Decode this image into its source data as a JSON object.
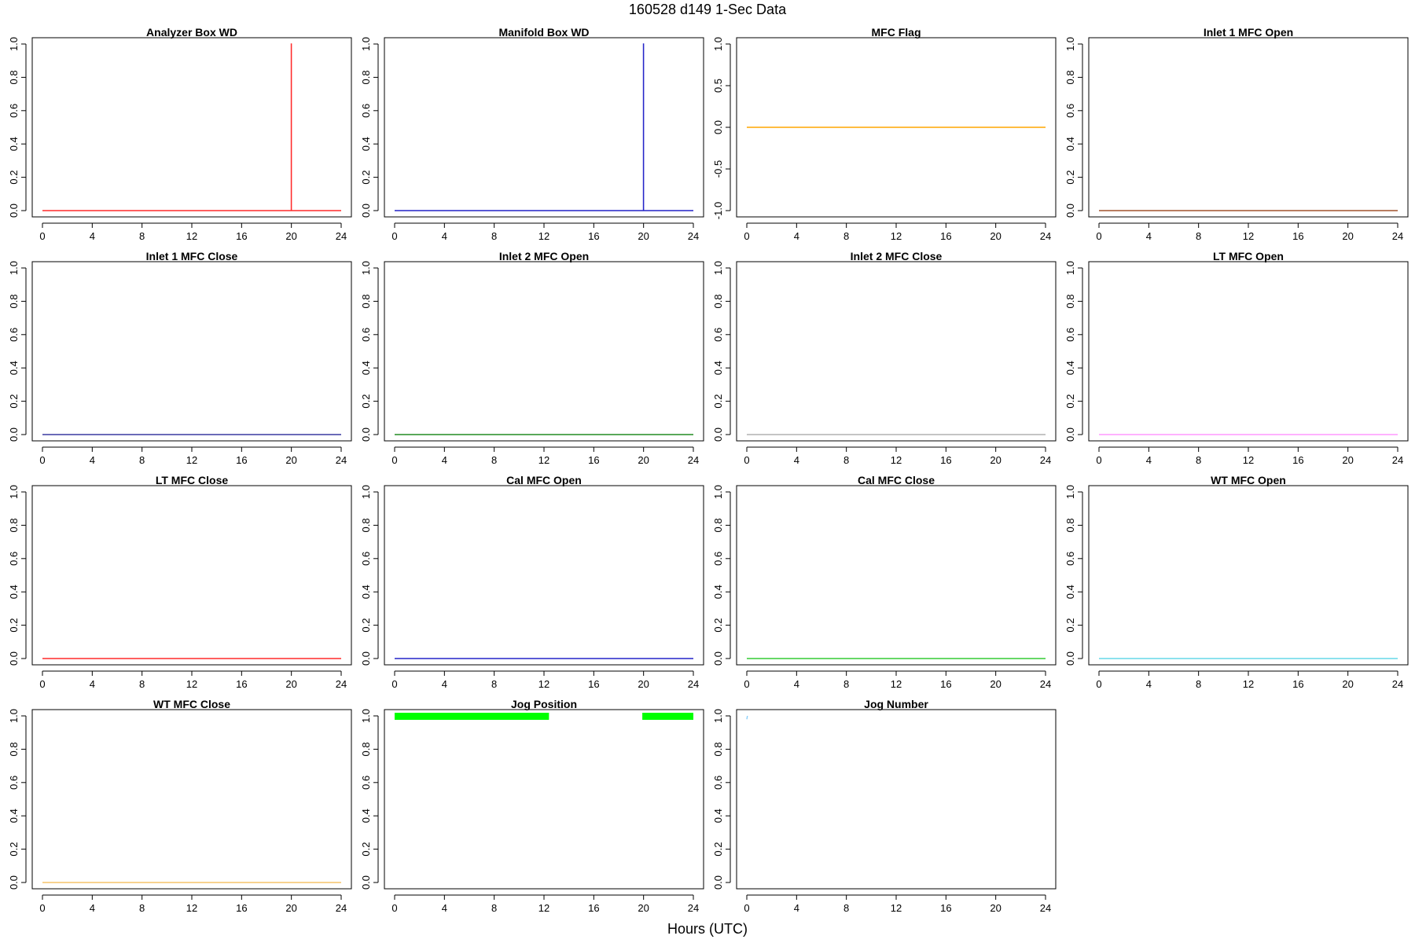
{
  "figure": {
    "title": "160528   d149   1-Sec Data",
    "xlabel": "Hours (UTC)"
  },
  "chart_data": [
    {
      "type": "line",
      "title": "Analyzer Box WD",
      "color": "#ff2a2a",
      "xlim": [
        0,
        24
      ],
      "ylim": [
        0,
        1
      ],
      "x_ticks": [
        0,
        4,
        8,
        12,
        16,
        20,
        24
      ],
      "y_ticks": [
        "0.0",
        "0.2",
        "0.4",
        "0.6",
        "0.8",
        "1.0"
      ],
      "series": [
        {
          "x": [
            0,
            19.99,
            19.99,
            20.0,
            20.0,
            24
          ],
          "y": [
            0,
            0,
            1,
            1,
            0,
            0
          ]
        }
      ]
    },
    {
      "type": "line",
      "title": "Manifold Box WD",
      "color": "#2424c8",
      "xlim": [
        0,
        24
      ],
      "ylim": [
        0,
        1
      ],
      "x_ticks": [
        0,
        4,
        8,
        12,
        16,
        20,
        24
      ],
      "y_ticks": [
        "0.0",
        "0.2",
        "0.4",
        "0.6",
        "0.8",
        "1.0"
      ],
      "series": [
        {
          "x": [
            0,
            19.99,
            19.99,
            20.0,
            20.0,
            24
          ],
          "y": [
            0,
            0,
            1,
            1,
            0,
            0
          ]
        }
      ]
    },
    {
      "type": "line",
      "title": "MFC Flag",
      "color": "#ffa500",
      "xlim": [
        0,
        24
      ],
      "ylim": [
        -1,
        1
      ],
      "x_ticks": [
        0,
        4,
        8,
        12,
        16,
        20,
        24
      ],
      "y_ticks": [
        "-1.0",
        "-0.5",
        "0.0",
        "0.5",
        "1.0"
      ],
      "series": [
        {
          "x": [
            0,
            24
          ],
          "y": [
            0,
            0
          ]
        }
      ]
    },
    {
      "type": "line",
      "title": "Inlet 1 MFC Open",
      "color": "#a0522d",
      "xlim": [
        0,
        24
      ],
      "ylim": [
        0,
        1
      ],
      "x_ticks": [
        0,
        4,
        8,
        12,
        16,
        20,
        24
      ],
      "y_ticks": [
        "0.0",
        "0.2",
        "0.4",
        "0.6",
        "0.8",
        "1.0"
      ],
      "series": [
        {
          "x": [
            0,
            24
          ],
          "y": [
            0,
            0
          ]
        }
      ]
    },
    {
      "type": "line",
      "title": "Inlet 1 MFC Close",
      "color": "#3a3aa0",
      "xlim": [
        0,
        24
      ],
      "ylim": [
        0,
        1
      ],
      "x_ticks": [
        0,
        4,
        8,
        12,
        16,
        20,
        24
      ],
      "y_ticks": [
        "0.0",
        "0.2",
        "0.4",
        "0.6",
        "0.8",
        "1.0"
      ],
      "series": [
        {
          "x": [
            0,
            24
          ],
          "y": [
            0,
            0
          ]
        }
      ]
    },
    {
      "type": "line",
      "title": "Inlet 2 MFC Open",
      "color": "#228b22",
      "xlim": [
        0,
        24
      ],
      "ylim": [
        0,
        1
      ],
      "x_ticks": [
        0,
        4,
        8,
        12,
        16,
        20,
        24
      ],
      "y_ticks": [
        "0.0",
        "0.2",
        "0.4",
        "0.6",
        "0.8",
        "1.0"
      ],
      "series": [
        {
          "x": [
            0,
            24
          ],
          "y": [
            0,
            0
          ]
        }
      ]
    },
    {
      "type": "line",
      "title": "Inlet 2 MFC Close",
      "color": "#b0b0b0",
      "xlim": [
        0,
        24
      ],
      "ylim": [
        0,
        1
      ],
      "x_ticks": [
        0,
        4,
        8,
        12,
        16,
        20,
        24
      ],
      "y_ticks": [
        "0.0",
        "0.2",
        "0.4",
        "0.6",
        "0.8",
        "1.0"
      ],
      "series": [
        {
          "x": [
            0,
            24
          ],
          "y": [
            0,
            0
          ]
        }
      ]
    },
    {
      "type": "line",
      "title": "LT MFC Open",
      "color": "#ff99ff",
      "xlim": [
        0,
        24
      ],
      "ylim": [
        0,
        1
      ],
      "x_ticks": [
        0,
        4,
        8,
        12,
        16,
        20,
        24
      ],
      "y_ticks": [
        "0.0",
        "0.2",
        "0.4",
        "0.6",
        "0.8",
        "1.0"
      ],
      "series": [
        {
          "x": [
            0,
            24
          ],
          "y": [
            0,
            0
          ]
        }
      ]
    },
    {
      "type": "line",
      "title": "LT MFC Close",
      "color": "#ff2a2a",
      "xlim": [
        0,
        24
      ],
      "ylim": [
        0,
        1
      ],
      "x_ticks": [
        0,
        4,
        8,
        12,
        16,
        20,
        24
      ],
      "y_ticks": [
        "0.0",
        "0.2",
        "0.4",
        "0.6",
        "0.8",
        "1.0"
      ],
      "series": [
        {
          "x": [
            0,
            24
          ],
          "y": [
            0,
            0
          ]
        }
      ]
    },
    {
      "type": "line",
      "title": "Cal MFC Open",
      "color": "#2424c8",
      "xlim": [
        0,
        24
      ],
      "ylim": [
        0,
        1
      ],
      "x_ticks": [
        0,
        4,
        8,
        12,
        16,
        20,
        24
      ],
      "y_ticks": [
        "0.0",
        "0.2",
        "0.4",
        "0.6",
        "0.8",
        "1.0"
      ],
      "series": [
        {
          "x": [
            0,
            24
          ],
          "y": [
            0,
            0
          ]
        }
      ]
    },
    {
      "type": "line",
      "title": "Cal MFC Close",
      "color": "#33cc33",
      "xlim": [
        0,
        24
      ],
      "ylim": [
        0,
        1
      ],
      "x_ticks": [
        0,
        4,
        8,
        12,
        16,
        20,
        24
      ],
      "y_ticks": [
        "0.0",
        "0.2",
        "0.4",
        "0.6",
        "0.8",
        "1.0"
      ],
      "series": [
        {
          "x": [
            0,
            24
          ],
          "y": [
            0,
            0
          ]
        }
      ]
    },
    {
      "type": "line",
      "title": "WT MFC Open",
      "color": "#66d9e8",
      "xlim": [
        0,
        24
      ],
      "ylim": [
        0,
        1
      ],
      "x_ticks": [
        0,
        4,
        8,
        12,
        16,
        20,
        24
      ],
      "y_ticks": [
        "0.0",
        "0.2",
        "0.4",
        "0.6",
        "0.8",
        "1.0"
      ],
      "series": [
        {
          "x": [
            0,
            24
          ],
          "y": [
            0,
            0
          ]
        }
      ]
    },
    {
      "type": "line",
      "title": "WT MFC Close",
      "color": "#f5c46a",
      "xlim": [
        0,
        24
      ],
      "ylim": [
        0,
        1
      ],
      "x_ticks": [
        0,
        4,
        8,
        12,
        16,
        20,
        24
      ],
      "y_ticks": [
        "0.0",
        "0.2",
        "0.4",
        "0.6",
        "0.8",
        "1.0"
      ],
      "series": [
        {
          "x": [
            0,
            24
          ],
          "y": [
            0,
            0
          ]
        }
      ]
    },
    {
      "type": "scatter",
      "title": "Jog Position",
      "color": "#00ff00",
      "xlim": [
        0,
        24
      ],
      "ylim": [
        0,
        1
      ],
      "x_ticks": [
        0,
        4,
        8,
        12,
        16,
        20,
        24
      ],
      "y_ticks": [
        "0.0",
        "0.2",
        "0.4",
        "0.6",
        "0.8",
        "1.0"
      ],
      "segments": [
        {
          "x_start": 0,
          "x_end": 12.4,
          "y": 1
        },
        {
          "x_start": 19.9,
          "x_end": 24,
          "y": 1
        }
      ]
    },
    {
      "type": "line",
      "title": "Jog Number",
      "color": "#87cefa",
      "xlim": [
        0,
        24
      ],
      "ylim": [
        0,
        1
      ],
      "x_ticks": [
        0,
        4,
        8,
        12,
        16,
        20,
        24
      ],
      "y_ticks": [
        "0.0",
        "0.2",
        "0.4",
        "0.6",
        "0.8",
        "1.0"
      ],
      "series": [
        {
          "x": [
            0.0,
            0.05
          ],
          "y": [
            0.98,
            1.0
          ]
        }
      ]
    }
  ]
}
